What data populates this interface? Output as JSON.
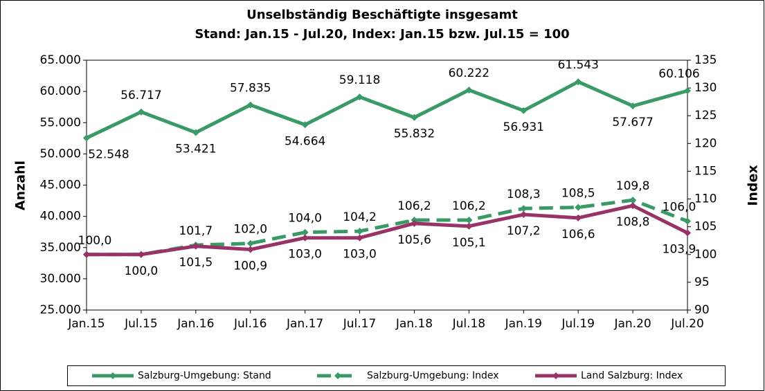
{
  "chart_data": {
    "type": "line",
    "title": "Unselbständig Beschäftigte insgesamt",
    "subtitle": "Stand: Jan.15 - Jul.20, Index: Jan.15 bzw. Jul.15 = 100",
    "ylabel": "Anzahl",
    "y2label": "Index",
    "categories": [
      "Jan.15",
      "Jul.15",
      "Jan.16",
      "Jul.16",
      "Jan.17",
      "Jul.17",
      "Jan.18",
      "Jul.18",
      "Jan.19",
      "Jul.19",
      "Jan.20",
      "Jul.20"
    ],
    "ylim": [
      25000,
      65000
    ],
    "yticks": [
      {
        "value": 25000,
        "label": "25.000"
      },
      {
        "value": 30000,
        "label": "30.000"
      },
      {
        "value": 35000,
        "label": "35.000"
      },
      {
        "value": 40000,
        "label": "40.000"
      },
      {
        "value": 45000,
        "label": "45.000"
      },
      {
        "value": 50000,
        "label": "50.000"
      },
      {
        "value": 55000,
        "label": "55.000"
      },
      {
        "value": 60000,
        "label": "60.000"
      },
      {
        "value": 65000,
        "label": "65.000"
      }
    ],
    "y2lim": [
      90,
      135
    ],
    "y2ticks": [
      90,
      95,
      100,
      105,
      110,
      115,
      120,
      125,
      130,
      135
    ],
    "series": [
      {
        "name": "Salzburg-Umgebung: Stand",
        "color": "#3a9a66",
        "dash": false,
        "values": [
          52548,
          56717,
          53421,
          57835,
          54664,
          59118,
          55832,
          60222,
          56931,
          61543,
          57677,
          60106
        ],
        "value_labels": [
          "52.548",
          "56.717",
          "53.421",
          "57.835",
          "54.664",
          "59.118",
          "55.832",
          "60.222",
          "56.931",
          "61.543",
          "57.677",
          "60.106"
        ]
      },
      {
        "name": "Salzburg-Umgebung: Index",
        "color": "#3a9a66",
        "dash": true,
        "axis": "y2",
        "values": [
          100,
          100,
          101.7,
          102,
          104,
          104.2,
          106.2,
          106.2,
          108.3,
          108.5,
          109.8,
          106
        ],
        "value_labels": [
          "100,0",
          null,
          "101,7",
          "102,0",
          "104,0",
          "104,2",
          "106,2",
          "106,2",
          "108,3",
          "108,5",
          "109,8",
          "106,0"
        ]
      },
      {
        "name": "Land Salzburg: Index",
        "color": "#993366",
        "dash": false,
        "axis": "y2",
        "values": [
          100,
          100,
          101.5,
          100.9,
          103,
          103,
          105.6,
          105.1,
          107.2,
          106.6,
          108.8,
          103.9
        ],
        "value_labels": [
          null,
          "100,0",
          "101,5",
          "100,9",
          "103,0",
          "103,0",
          "105,6",
          "105,1",
          "107,2",
          "106,6",
          "108,8",
          "103,9"
        ]
      }
    ]
  }
}
